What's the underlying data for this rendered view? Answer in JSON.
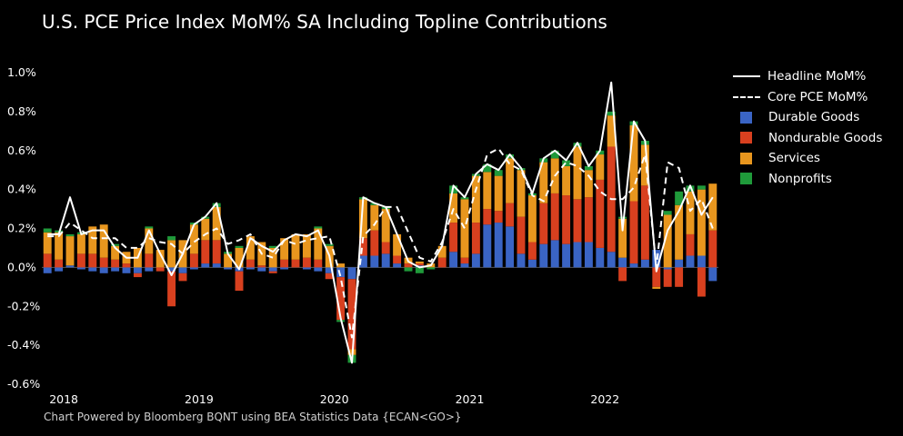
{
  "chart_data": {
    "type": "bar",
    "stacked": true,
    "title": "U.S. PCE Price Index MoM% SA Including Topline Contributions",
    "source": "Chart Powered by Bloomberg BQNT using BEA Statistics Data   {ECAN<GO>}",
    "xlabel": "",
    "ylabel": "",
    "ylim": [
      -0.6,
      1.0
    ],
    "y_ticks": [
      "1.0%",
      "0.8%",
      "0.6%",
      "0.4%",
      "0.2%",
      "0.0%",
      "-0.2%",
      "-0.4%",
      "-0.6%"
    ],
    "x_year_labels": [
      "2018",
      "2019",
      "2020",
      "2021",
      "2022"
    ],
    "categories": [
      "2018-01",
      "2018-02",
      "2018-03",
      "2018-04",
      "2018-05",
      "2018-06",
      "2018-07",
      "2018-08",
      "2018-09",
      "2018-10",
      "2018-11",
      "2018-12",
      "2019-01",
      "2019-02",
      "2019-03",
      "2019-04",
      "2019-05",
      "2019-06",
      "2019-07",
      "2019-08",
      "2019-09",
      "2019-10",
      "2019-11",
      "2019-12",
      "2020-01",
      "2020-02",
      "2020-03",
      "2020-04",
      "2020-05",
      "2020-06",
      "2020-07",
      "2020-08",
      "2020-09",
      "2020-10",
      "2020-11",
      "2020-12",
      "2021-01",
      "2021-02",
      "2021-03",
      "2021-04",
      "2021-05",
      "2021-06",
      "2021-07",
      "2021-08",
      "2021-09",
      "2021-10",
      "2021-11",
      "2021-12",
      "2022-01",
      "2022-02",
      "2022-03",
      "2022-04",
      "2022-05",
      "2022-06",
      "2022-07",
      "2022-08",
      "2022-09",
      "2022-10",
      "2022-11",
      "2022-12"
    ],
    "series": [
      {
        "name": "Durable Goods",
        "color": "#3a64c4",
        "values": [
          -0.03,
          -0.02,
          0.01,
          -0.01,
          -0.02,
          -0.03,
          -0.02,
          -0.03,
          -0.03,
          -0.02,
          0.0,
          -0.02,
          -0.03,
          -0.01,
          0.02,
          0.02,
          -0.01,
          -0.02,
          -0.01,
          -0.02,
          -0.02,
          -0.01,
          0.0,
          -0.01,
          -0.02,
          -0.03,
          -0.05,
          -0.06,
          0.06,
          0.06,
          0.07,
          0.02,
          0.0,
          0.01,
          0.0,
          0.0,
          0.08,
          0.02,
          0.07,
          0.22,
          0.23,
          0.21,
          0.07,
          0.04,
          0.12,
          0.14,
          0.12,
          0.13,
          0.13,
          0.1,
          0.08,
          0.05,
          0.02,
          0.04,
          0.09,
          -0.01,
          0.04,
          0.06,
          0.06,
          -0.07
        ]
      },
      {
        "name": "Nondurable Goods",
        "color": "#d8401f",
        "values": [
          0.07,
          0.04,
          0.0,
          0.07,
          0.07,
          0.05,
          0.04,
          0.02,
          -0.02,
          0.07,
          -0.02,
          -0.18,
          -0.04,
          0.07,
          0.12,
          0.12,
          0.0,
          -0.1,
          0.04,
          0.01,
          -0.01,
          0.04,
          0.04,
          0.05,
          0.04,
          -0.03,
          -0.22,
          -0.36,
          0.09,
          0.13,
          0.06,
          0.04,
          0.02,
          0.01,
          0.0,
          0.05,
          0.15,
          0.03,
          0.16,
          0.08,
          0.06,
          0.12,
          0.19,
          0.09,
          0.21,
          0.24,
          0.25,
          0.22,
          0.23,
          0.35,
          0.54,
          -0.07,
          0.32,
          0.38,
          -0.1,
          -0.09,
          -0.1,
          0.11,
          -0.15,
          0.19
        ]
      },
      {
        "name": "Services",
        "color": "#e8961e",
        "values": [
          0.11,
          0.14,
          0.15,
          0.1,
          0.14,
          0.17,
          0.07,
          0.06,
          0.1,
          0.13,
          0.09,
          0.14,
          0.14,
          0.15,
          0.11,
          0.17,
          0.07,
          0.1,
          0.12,
          0.12,
          0.1,
          0.11,
          0.13,
          0.12,
          0.16,
          0.11,
          0.02,
          -0.03,
          0.2,
          0.13,
          0.17,
          0.11,
          0.03,
          0.01,
          0.02,
          0.06,
          0.15,
          0.3,
          0.24,
          0.19,
          0.18,
          0.23,
          0.24,
          0.24,
          0.21,
          0.18,
          0.15,
          0.27,
          0.14,
          0.13,
          0.16,
          0.2,
          0.39,
          0.21,
          -0.01,
          0.27,
          0.28,
          0.22,
          0.34,
          0.24
        ]
      },
      {
        "name": "Nonprofits",
        "color": "#1f9a3a",
        "values": [
          0.02,
          0.01,
          0.01,
          0.01,
          0.0,
          0.0,
          0.01,
          0.0,
          0.0,
          0.01,
          0.0,
          0.02,
          0.0,
          0.01,
          0.01,
          0.02,
          0.01,
          0.01,
          0.0,
          0.0,
          0.01,
          0.0,
          0.0,
          0.0,
          0.01,
          0.01,
          -0.01,
          -0.04,
          0.01,
          0.01,
          0.01,
          0.0,
          -0.02,
          -0.03,
          -0.01,
          0.0,
          0.04,
          0.01,
          0.01,
          0.04,
          0.03,
          0.02,
          0.01,
          0.01,
          0.02,
          0.04,
          0.03,
          0.02,
          0.02,
          0.02,
          0.02,
          0.01,
          0.02,
          0.02,
          0.0,
          0.02,
          0.07,
          0.03,
          0.02,
          0.0
        ]
      },
      {
        "name": "Headline MoM%",
        "color": "#ffffff",
        "kind": "line",
        "values": [
          0.17,
          0.17,
          0.36,
          0.17,
          0.19,
          0.19,
          0.1,
          0.05,
          0.05,
          0.19,
          0.07,
          -0.04,
          0.07,
          0.22,
          0.26,
          0.33,
          0.07,
          -0.01,
          0.15,
          0.11,
          0.08,
          0.14,
          0.17,
          0.16,
          0.19,
          0.06,
          -0.26,
          -0.49,
          0.36,
          0.33,
          0.31,
          0.17,
          0.03,
          0.0,
          0.01,
          0.11,
          0.42,
          0.36,
          0.48,
          0.53,
          0.5,
          0.58,
          0.51,
          0.38,
          0.56,
          0.6,
          0.55,
          0.64,
          0.52,
          0.6,
          0.95,
          0.19,
          0.75,
          0.65,
          -0.02,
          0.19,
          0.29,
          0.42,
          0.27,
          0.36
        ]
      },
      {
        "name": "Core PCE MoM%",
        "color": "#ffffff",
        "kind": "dashed-line",
        "values": [
          0.16,
          0.16,
          0.23,
          0.19,
          0.15,
          0.15,
          0.15,
          0.1,
          0.1,
          0.15,
          0.13,
          0.12,
          0.07,
          0.13,
          0.17,
          0.2,
          0.12,
          0.14,
          0.17,
          0.07,
          0.05,
          0.14,
          0.12,
          0.14,
          0.15,
          0.16,
          -0.05,
          -0.36,
          0.16,
          0.22,
          0.31,
          0.31,
          0.18,
          0.05,
          0.03,
          0.13,
          0.3,
          0.2,
          0.4,
          0.58,
          0.61,
          0.53,
          0.5,
          0.37,
          0.34,
          0.47,
          0.54,
          0.52,
          0.47,
          0.39,
          0.35,
          0.35,
          0.41,
          0.58,
          0.0,
          0.54,
          0.51,
          0.29,
          0.35,
          0.2
        ]
      }
    ],
    "legend_position": "right",
    "grid": false
  },
  "legend": {
    "headline": "Headline MoM%",
    "core": "Core PCE MoM%",
    "durable": "Durable Goods",
    "nondurable": "Nondurable Goods",
    "services": "Services",
    "nonprofits": "Nonprofits"
  }
}
